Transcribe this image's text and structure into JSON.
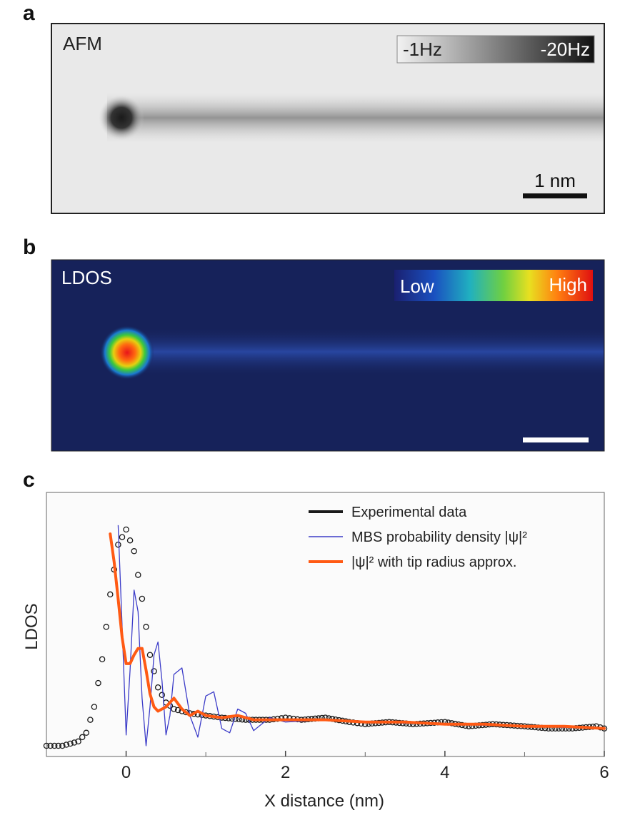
{
  "panels": {
    "a": {
      "letter": "a",
      "label": "AFM",
      "colorbar_min": "-1Hz",
      "colorbar_max": "-20Hz",
      "scalebar": "1 nm"
    },
    "b": {
      "letter": "b",
      "label": "LDOS",
      "colorbar_low": "Low",
      "colorbar_high": "High"
    },
    "c": {
      "letter": "c"
    }
  },
  "colors": {
    "ldos_background": "#16225a",
    "afm_background": "#e9e9e9",
    "experimental": "#1a1a1a",
    "mbs": "#3c3cc8",
    "tip": "#ff5a14",
    "plot_background": "#fbfbfb"
  },
  "chart_data": {
    "type": "line",
    "xlabel": "X distance (nm)",
    "ylabel": "LDOS",
    "xlim": [
      -1,
      6
    ],
    "ylim": [
      0,
      1
    ],
    "xticks": [
      0,
      2,
      4,
      6
    ],
    "minor_xticks": [
      1,
      3,
      5
    ],
    "legend_position": "top-right",
    "series": [
      {
        "name": "Experimental data",
        "style": "markers",
        "x": [
          -1.0,
          -0.8,
          -0.6,
          -0.5,
          -0.4,
          -0.3,
          -0.2,
          -0.1,
          0.0,
          0.1,
          0.2,
          0.3,
          0.4,
          0.5,
          0.6,
          0.8,
          1.0,
          1.2,
          1.5,
          1.8,
          2.0,
          2.2,
          2.5,
          2.8,
          3.0,
          3.3,
          3.6,
          4.0,
          4.3,
          4.6,
          5.0,
          5.3,
          5.6,
          5.9,
          6.0
        ],
        "y": [
          0.0,
          0.0,
          0.02,
          0.06,
          0.18,
          0.4,
          0.7,
          0.93,
          1.0,
          0.9,
          0.68,
          0.42,
          0.27,
          0.2,
          0.17,
          0.15,
          0.14,
          0.13,
          0.12,
          0.12,
          0.13,
          0.12,
          0.13,
          0.11,
          0.1,
          0.11,
          0.1,
          0.11,
          0.09,
          0.1,
          0.09,
          0.08,
          0.08,
          0.09,
          0.08
        ]
      },
      {
        "name": "MBS probability density |ψ|²",
        "style": "thin-line",
        "x": [
          -0.1,
          -0.05,
          0.0,
          0.05,
          0.1,
          0.15,
          0.2,
          0.25,
          0.3,
          0.35,
          0.4,
          0.45,
          0.5,
          0.55,
          0.6,
          0.7,
          0.8,
          0.9,
          1.0,
          1.1,
          1.2,
          1.3,
          1.4,
          1.5,
          1.6,
          1.7,
          1.8,
          2.0,
          2.5,
          3.0,
          4.0,
          5.0,
          6.0
        ],
        "y": [
          1.02,
          0.55,
          0.05,
          0.35,
          0.72,
          0.62,
          0.22,
          0.0,
          0.18,
          0.42,
          0.48,
          0.3,
          0.05,
          0.14,
          0.33,
          0.36,
          0.14,
          0.04,
          0.23,
          0.25,
          0.08,
          0.06,
          0.17,
          0.15,
          0.07,
          0.1,
          0.13,
          0.11,
          0.12,
          0.11,
          0.1,
          0.09,
          0.08
        ]
      },
      {
        "name": "|ψ|² with tip radius approx.",
        "style": "thick-line",
        "x": [
          -0.2,
          -0.15,
          -0.1,
          -0.05,
          0.0,
          0.05,
          0.1,
          0.15,
          0.2,
          0.25,
          0.3,
          0.35,
          0.4,
          0.5,
          0.6,
          0.7,
          0.8,
          0.9,
          1.0,
          1.2,
          1.4,
          1.6,
          1.8,
          2.0,
          2.5,
          3.0,
          3.5,
          4.0,
          4.5,
          5.0,
          5.5,
          6.0
        ],
        "y": [
          0.98,
          0.85,
          0.68,
          0.5,
          0.38,
          0.38,
          0.42,
          0.45,
          0.45,
          0.35,
          0.24,
          0.18,
          0.16,
          0.18,
          0.22,
          0.17,
          0.14,
          0.16,
          0.14,
          0.13,
          0.14,
          0.12,
          0.12,
          0.12,
          0.12,
          0.11,
          0.11,
          0.1,
          0.1,
          0.09,
          0.09,
          0.08
        ]
      }
    ]
  }
}
